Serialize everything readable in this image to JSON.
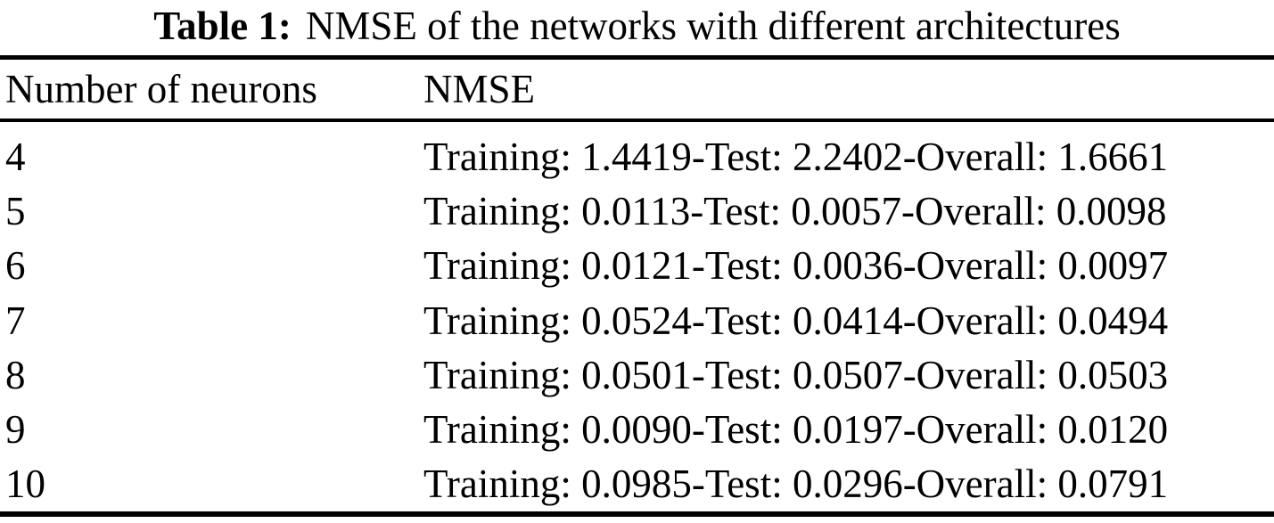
{
  "figure": {
    "caption": {
      "label": "Table 1:",
      "text": "NMSE of the networks with different architectures"
    },
    "table": {
      "headers": {
        "neurons": "Number of neurons",
        "nmse": "NMSE"
      },
      "rows": [
        {
          "neurons": "4",
          "nmse": "Training: 1.4419-Test: 2.2402-Overall: 1.6661"
        },
        {
          "neurons": "5",
          "nmse": "Training: 0.0113-Test: 0.0057-Overall: 0.0098"
        },
        {
          "neurons": "6",
          "nmse": "Training: 0.0121-Test: 0.0036-Overall: 0.0097"
        },
        {
          "neurons": "7",
          "nmse": "Training: 0.0524-Test: 0.0414-Overall: 0.0494"
        },
        {
          "neurons": "8",
          "nmse": "Training: 0.0501-Test: 0.0507-Overall: 0.0503"
        },
        {
          "neurons": "9",
          "nmse": "Training: 0.0090-Test: 0.0197-Overall: 0.0120"
        },
        {
          "neurons": "10",
          "nmse": "Training: 0.0985-Test: 0.0296-Overall: 0.0791"
        }
      ]
    },
    "colors": {
      "background": "#ffffff",
      "text": "#000000",
      "rule": "#000000"
    }
  }
}
